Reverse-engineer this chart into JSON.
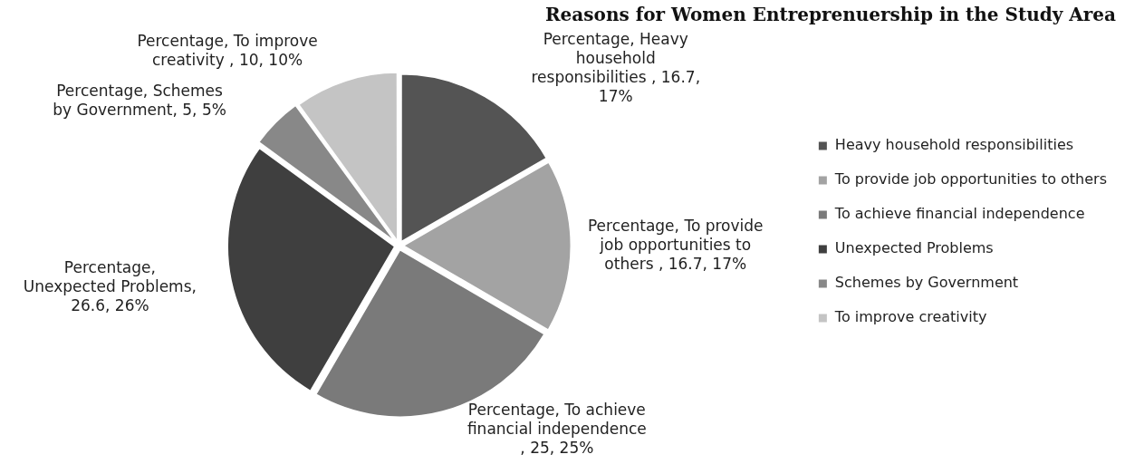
{
  "chart_data": {
    "type": "pie",
    "title": "Reasons for Women Entreprenuership in the Study Area",
    "categories": [
      "Heavy household responsibilities",
      "To provide job opportunities to others",
      "To achieve financial independence",
      "Unexpected Problems",
      "Schemes by Government",
      "To improve creativity"
    ],
    "values": [
      16.7,
      16.7,
      25,
      26.6,
      5,
      10
    ],
    "colors": [
      "#545454",
      "#a3a3a3",
      "#7a7a7a",
      "#3f3f3f",
      "#888888",
      "#c4c4c4"
    ],
    "value_labels": [
      "Percentage, Heavy household responsibilities , 16.7, 17%",
      "Percentage, To provide job opportunities to others , 16.7, 17%",
      "Percentage, To achieve financial independence , 25, 25%",
      "Percentage, Unexpected Problems, 26.6, 26%",
      "Percentage, Schemes by Government, 5, 5%",
      "Percentage, To improve creativity , 10, 10%"
    ],
    "legend": "right"
  }
}
